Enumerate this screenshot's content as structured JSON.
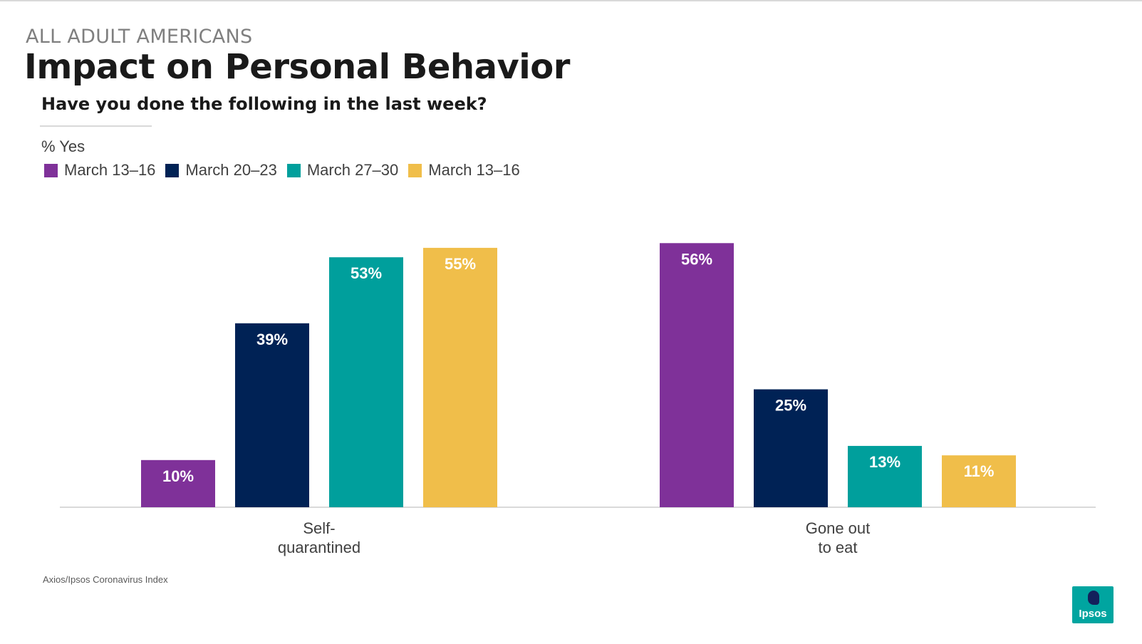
{
  "header": {
    "eyebrow": "ALL ADULT AMERICANS",
    "title": "Impact on Personal Behavior",
    "question": "Have you done the following in the last week?",
    "measure": "% Yes"
  },
  "legend": [
    {
      "label": "March 13–16",
      "color": "#7f3199"
    },
    {
      "label": "March 20–23",
      "color": "#002255"
    },
    {
      "label": "March 27–30",
      "color": "#009f9c"
    },
    {
      "label": "March 13–16",
      "color": "#f0be4a"
    }
  ],
  "chart_data": {
    "type": "bar",
    "categories": [
      "Self-\nquarantined",
      "Gone out\nto eat"
    ],
    "ylim": [
      0,
      60
    ],
    "grid": false,
    "legend_position": "top-left",
    "series": [
      {
        "name": "March 13–16",
        "color": "#7f3199",
        "values": [
          10,
          56
        ],
        "labels": [
          "10%",
          "56%"
        ]
      },
      {
        "name": "March 20–23",
        "color": "#002255",
        "values": [
          39,
          25
        ],
        "labels": [
          "39%",
          "25%"
        ]
      },
      {
        "name": "March 27–30",
        "color": "#009f9c",
        "values": [
          53,
          13
        ],
        "labels": [
          "53%",
          "13%"
        ]
      },
      {
        "name": "March 13–16",
        "color": "#f0be4a",
        "values": [
          55,
          11
        ],
        "labels": [
          "55%",
          "11%"
        ]
      }
    ]
  },
  "footer": {
    "source": "Axios/Ipsos Coronavirus Index",
    "logo_text": "Ipsos"
  }
}
